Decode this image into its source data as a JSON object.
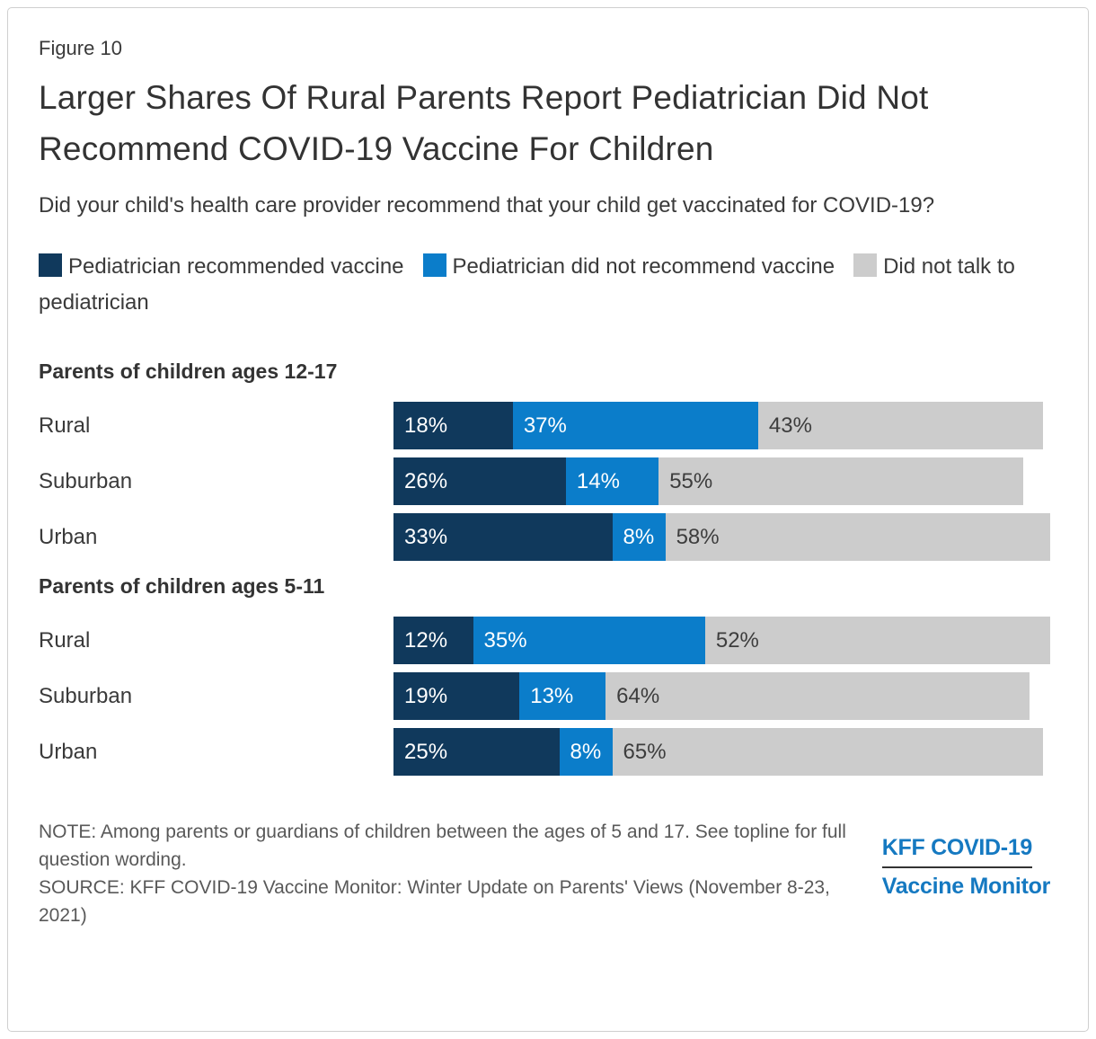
{
  "figure_label": "Figure 10",
  "title": "Larger Shares Of Rural Parents Report Pediatrician Did Not Recommend COVID-19 Vaccine For Children",
  "subtitle": "Did your child's health care provider recommend that your child get vaccinated for COVID-19?",
  "legend": [
    {
      "label": "Pediatrician recommended vaccine",
      "color": "#10395c"
    },
    {
      "label": "Pediatrician did not recommend vaccine",
      "color": "#0b7dca"
    },
    {
      "label": "Did not talk to pediatrician",
      "color": "#cccccc"
    }
  ],
  "note": "NOTE: Among parents or guardians of children between the ages of 5 and 17. See topline for full question wording.",
  "source": "SOURCE: KFF COVID-19 Vaccine Monitor: Winter Update on Parents' Views (November 8-23, 2021)",
  "logo": {
    "line1": "KFF COVID-19",
    "line2": "Vaccine Monitor"
  },
  "chart_data": {
    "type": "bar",
    "orientation": "horizontal",
    "stacked": true,
    "unit": "%",
    "xlim": [
      0,
      100
    ],
    "grid": false,
    "legend_position": "top",
    "series_names": [
      "Pediatrician recommended vaccine",
      "Pediatrician did not recommend vaccine",
      "Did not talk to pediatrician"
    ],
    "colors": [
      "#10395c",
      "#0b7dca",
      "#cccccc"
    ],
    "groups": [
      {
        "header": "Parents of children ages 12-17",
        "rows": [
          {
            "label": "Rural",
            "values": [
              18,
              37,
              43
            ]
          },
          {
            "label": "Suburban",
            "values": [
              26,
              14,
              55
            ]
          },
          {
            "label": "Urban",
            "values": [
              33,
              8,
              58
            ]
          }
        ]
      },
      {
        "header": "Parents of children ages 5-11",
        "rows": [
          {
            "label": "Rural",
            "values": [
              12,
              35,
              52
            ]
          },
          {
            "label": "Suburban",
            "values": [
              19,
              13,
              64
            ]
          },
          {
            "label": "Urban",
            "values": [
              25,
              8,
              65
            ]
          }
        ]
      }
    ]
  }
}
